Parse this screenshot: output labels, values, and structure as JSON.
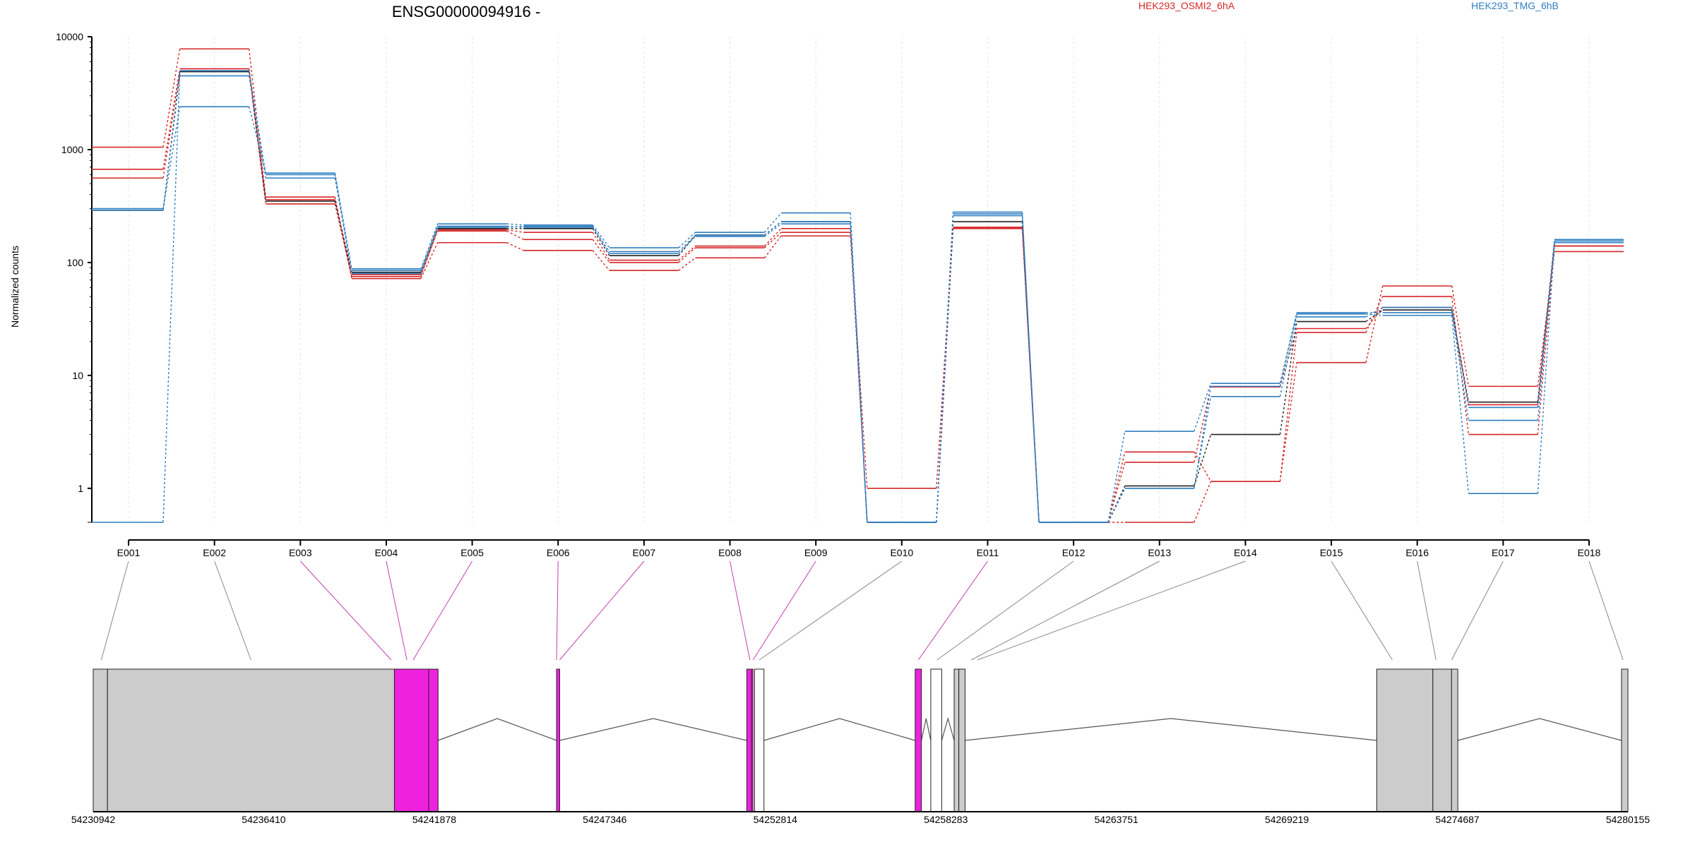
{
  "colors": {
    "osmi": "#d62728",
    "tmg": "#2f7fc1",
    "black": "#222222",
    "exon_gray": "#cccccc",
    "exon_magenta": "#ee22dd",
    "grid": "#e3e3e3",
    "connector_gray": "#888888",
    "connector_magenta": "#c040b0"
  },
  "chart_data": [
    {
      "type": "line",
      "title": "ENSG00000094916 -",
      "xlabel": "",
      "ylabel": "Normalized counts",
      "yscale": "log",
      "ylim": [
        0.5,
        10000
      ],
      "yticks": [
        1,
        10,
        100,
        1000,
        10000
      ],
      "ytick_labels": [
        "1",
        "10",
        "100",
        "1000",
        "10000"
      ],
      "grid": true,
      "legend_placement": "top",
      "legend": [
        {
          "name": "HEK293_OSMI2_6hA",
          "color_key": "osmi"
        },
        {
          "name": "HEK293_TMG_6hB",
          "color_key": "tmg"
        }
      ],
      "categories": [
        "E001",
        "E002",
        "E003",
        "E004",
        "E005",
        "E006",
        "E007",
        "E008",
        "E009",
        "E010",
        "E011",
        "E012",
        "E013",
        "E014",
        "E015",
        "E016",
        "E017",
        "E018"
      ],
      "series": [
        {
          "group": "osmi",
          "values": [
            1050,
            7800,
            380,
            72,
            150,
            128,
            85,
            110,
            172,
            1.0,
            200,
            0.5,
            0.5,
            1.15,
            13,
            62,
            8,
            125
          ]
        },
        {
          "group": "osmi",
          "values": [
            670,
            5200,
            360,
            78,
            190,
            160,
            100,
            135,
            185,
            0.5,
            205,
            0.5,
            2.1,
            1.15,
            24,
            50,
            3,
            140
          ]
        },
        {
          "group": "osmi",
          "values": [
            560,
            5000,
            330,
            75,
            195,
            185,
            105,
            140,
            200,
            0.5,
            205,
            0.5,
            1.7,
            7.9,
            26,
            40,
            5.5,
            140
          ]
        },
        {
          "group": "black",
          "values": [
            290,
            4900,
            350,
            82,
            200,
            200,
            115,
            175,
            230,
            0.5,
            230,
            0.5,
            1.05,
            3.0,
            30,
            38,
            5.8,
            150
          ]
        },
        {
          "group": "tmg",
          "values": [
            290,
            4500,
            560,
            85,
            210,
            205,
            125,
            175,
            230,
            0.5,
            260,
            0.5,
            1.0,
            6.5,
            33,
            40,
            5.2,
            155
          ]
        },
        {
          "group": "tmg",
          "values": [
            300,
            2400,
            620,
            88,
            220,
            215,
            135,
            185,
            275,
            0.5,
            280,
            0.5,
            3.2,
            8.5,
            36,
            36,
            4.0,
            160
          ]
        },
        {
          "group": "tmg",
          "values": [
            0.5,
            5000,
            600,
            80,
            205,
            210,
            120,
            170,
            220,
            0.5,
            270,
            0.5,
            1.0,
            8.0,
            35,
            34,
            0.9,
            150
          ]
        }
      ]
    },
    {
      "type": "gene_model",
      "genomic_ticks": [
        "54230942",
        "54236410",
        "54241878",
        "54247346",
        "54252814",
        "54258283",
        "54263751",
        "54269219",
        "54274687",
        "54280155"
      ],
      "genomic_range": [
        54230942,
        54280155
      ],
      "exon_map": [
        {
          "bin": "E001",
          "pos": 54231200,
          "style": "gray"
        },
        {
          "bin": "E002",
          "pos": 54236000,
          "style": "gray"
        },
        {
          "bin": "E003",
          "pos": 54240500,
          "style": "magenta"
        },
        {
          "bin": "E004",
          "pos": 54241000,
          "style": "magenta"
        },
        {
          "bin": "E005",
          "pos": 54241200,
          "style": "magenta"
        },
        {
          "bin": "E006",
          "pos": 54245800,
          "style": "magenta"
        },
        {
          "bin": "E007",
          "pos": 54245900,
          "style": "magenta"
        },
        {
          "bin": "E008",
          "pos": 54252000,
          "style": "magenta"
        },
        {
          "bin": "E009",
          "pos": 54252100,
          "style": "magenta"
        },
        {
          "bin": "E010",
          "pos": 54252300,
          "style": "gray"
        },
        {
          "bin": "E011",
          "pos": 54257400,
          "style": "magenta"
        },
        {
          "bin": "E012",
          "pos": 54258000,
          "style": "gray"
        },
        {
          "bin": "E013",
          "pos": 54259100,
          "style": "gray"
        },
        {
          "bin": "E014",
          "pos": 54259300,
          "style": "gray"
        },
        {
          "bin": "E015",
          "pos": 54272600,
          "style": "gray"
        },
        {
          "bin": "E016",
          "pos": 54274000,
          "style": "gray"
        },
        {
          "bin": "E017",
          "pos": 54274500,
          "style": "gray"
        },
        {
          "bin": "E018",
          "pos": 54280000,
          "style": "gray"
        }
      ],
      "exons": [
        {
          "start": 54230942,
          "end": 54231400,
          "fill": "gray"
        },
        {
          "start": 54231400,
          "end": 54240600,
          "fill": "gray"
        },
        {
          "start": 54240600,
          "end": 54241700,
          "fill": "magenta"
        },
        {
          "start": 54241700,
          "end": 54242000,
          "fill": "magenta"
        },
        {
          "start": 54245800,
          "end": 54245900,
          "fill": "magenta"
        },
        {
          "start": 54251900,
          "end": 54252050,
          "fill": "magenta"
        },
        {
          "start": 54252050,
          "end": 54252100,
          "fill": "magenta"
        },
        {
          "start": 54252150,
          "end": 54252450,
          "fill": "white"
        },
        {
          "start": 54257300,
          "end": 54257500,
          "fill": "magenta"
        },
        {
          "start": 54257800,
          "end": 54258150,
          "fill": "white"
        },
        {
          "start": 54258550,
          "end": 54258700,
          "fill": "gray"
        },
        {
          "start": 54258700,
          "end": 54258900,
          "fill": "gray"
        },
        {
          "start": 54272100,
          "end": 54273900,
          "fill": "gray"
        },
        {
          "start": 54273900,
          "end": 54274500,
          "fill": "gray"
        },
        {
          "start": 54274500,
          "end": 54274700,
          "fill": "gray"
        },
        {
          "start": 54279950,
          "end": 54280155,
          "fill": "gray"
        }
      ],
      "introns": [
        {
          "start": 54242000,
          "end": 54245800
        },
        {
          "start": 54245900,
          "end": 54251900
        },
        {
          "start": 54252450,
          "end": 54257300
        },
        {
          "start": 54257500,
          "end": 54257800
        },
        {
          "start": 54258150,
          "end": 54258550
        },
        {
          "start": 54258900,
          "end": 54272100
        },
        {
          "start": 54274700,
          "end": 54279950
        }
      ]
    }
  ]
}
